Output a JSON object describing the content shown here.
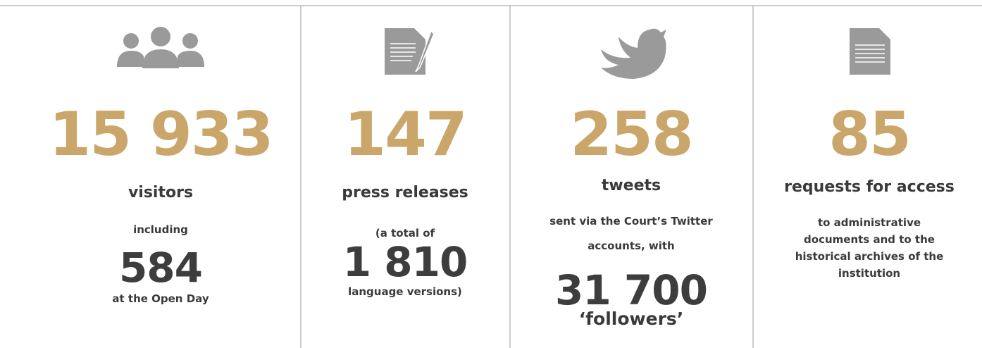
{
  "columns": [
    {
      "number": "15 933",
      "label": "visitors",
      "before": [
        "including"
      ],
      "highlight": "584",
      "after": [
        "at the Open Day"
      ]
    },
    {
      "number": "147",
      "label": "press releases",
      "before": [
        "(a total of"
      ],
      "highlight": "1 810",
      "after": [
        "language versions)"
      ]
    },
    {
      "number": "258",
      "label": "tweets",
      "before": [
        "sent via the Court’s Twitter",
        "accounts, with"
      ],
      "highlight": "31 700",
      "after": [
        "‘followers’"
      ]
    },
    {
      "number": "85",
      "label": "requests for access",
      "before": [
        "to administrative",
        "documents and to the",
        "historical archives of the",
        "institution"
      ]
    }
  ]
}
